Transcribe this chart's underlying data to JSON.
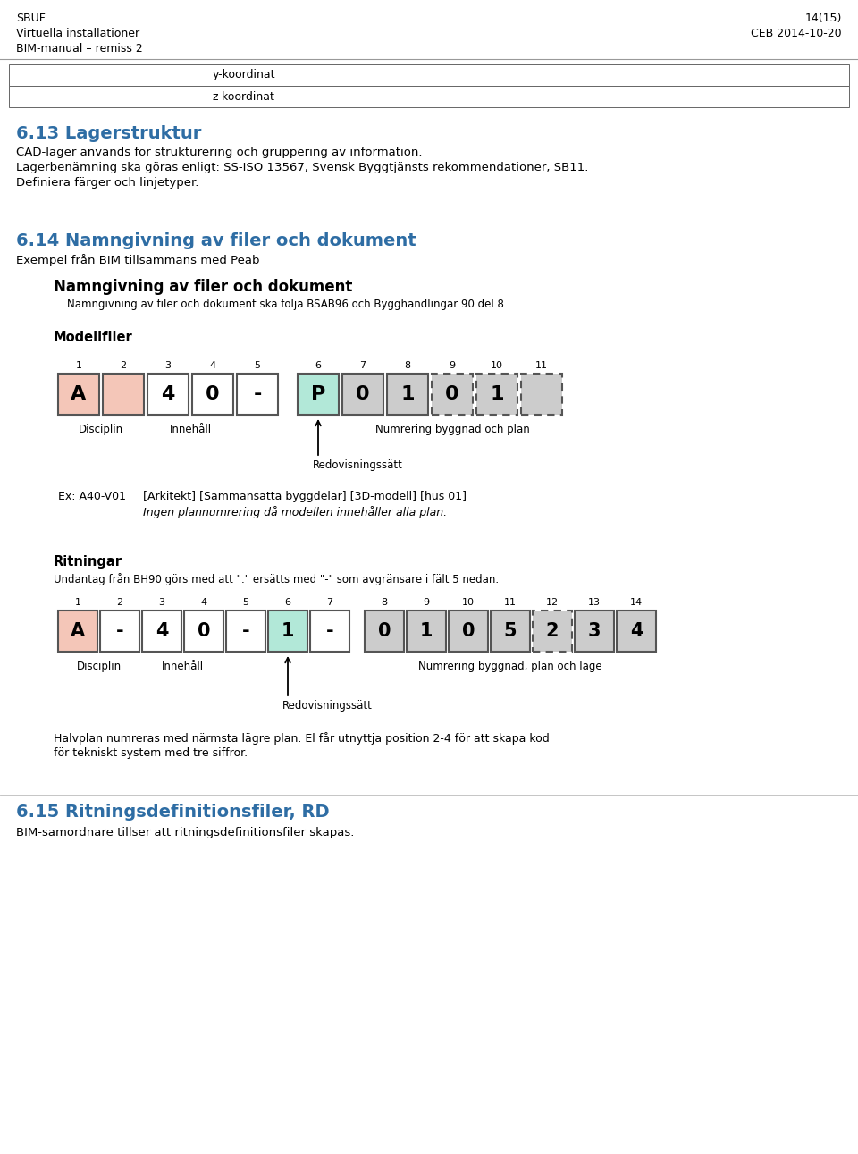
{
  "header_left": [
    "SBUF",
    "Virtuella installationer",
    "BIM-manual – remiss 2"
  ],
  "header_right": [
    "14(15)",
    "CEB 2014-10-20"
  ],
  "table_rows": [
    "y-koordinat",
    "z-koordinat"
  ],
  "section_613_title": "6.13 Lagerstruktur",
  "section_613_text": [
    "CAD-lager används för strukturering och gruppering av information.",
    "Lagerbenämning ska göras enligt: SS-ISO 13567, Svensk Byggtjänsts rekommendationer, SB11.",
    "Definiera färger och linjetyper."
  ],
  "section_614_title": "6.14 Namngivning av filer och dokument",
  "section_614_subtitle": "Exempel från BIM tillsammans med Peab",
  "doc_title": "Namngivning av filer och dokument",
  "doc_subtitle": "Namngivning av filer och dokument ska följa BSAB96 och Bygghandlingar 90 del 8.",
  "modellfiler_title": "Modellfiler",
  "model_numbers": [
    "1",
    "2",
    "3",
    "4",
    "5",
    "6",
    "7",
    "8",
    "9",
    "10",
    "11"
  ],
  "model_labels": [
    "A",
    "",
    "4",
    "0",
    "-",
    "P",
    "0",
    "1",
    "0",
    "1",
    ""
  ],
  "model_colors": [
    "#f4c6b8",
    "#f4c6b8",
    "#ffffff",
    "#ffffff",
    "#ffffff",
    "#b2e8d8",
    "#cccccc",
    "#cccccc",
    "#cccccc",
    "#cccccc",
    "#cccccc"
  ],
  "model_dashed": [
    false,
    false,
    false,
    false,
    false,
    false,
    false,
    false,
    true,
    true,
    true
  ],
  "model_ann_left": "Disciplin",
  "model_ann_mid": "Innehåll",
  "model_ann_right": "Numrering byggnad och plan",
  "model_ann_arrow": "Redovisningssätt",
  "model_ex_label": "Ex: A40-V01",
  "model_ex_text": "[Arkitekt] [Sammansatta byggdelar] [3D-modell] [hus 01]",
  "model_ex_italic": "Ingen plannumrering då modellen innehåller alla plan.",
  "ritningar_title": "Ritningar",
  "ritningar_text": "Undantag från BH90 görs med att \".\" ersätts med \"-\" som avgränsare i fält 5 nedan.",
  "rit_numbers": [
    "1",
    "2",
    "3",
    "4",
    "5",
    "6",
    "7",
    "8",
    "9",
    "10",
    "11",
    "12",
    "13",
    "14"
  ],
  "rit_labels": [
    "A",
    "-",
    "4",
    "0",
    "-",
    "1",
    "-",
    "0",
    "1",
    "0",
    "5",
    "2",
    "3",
    "4"
  ],
  "rit_colors": [
    "#f4c6b8",
    "#ffffff",
    "#ffffff",
    "#ffffff",
    "#ffffff",
    "#b2e8d8",
    "#ffffff",
    "#cccccc",
    "#cccccc",
    "#cccccc",
    "#cccccc",
    "#cccccc",
    "#cccccc",
    "#cccccc"
  ],
  "rit_dashed": [
    false,
    false,
    false,
    false,
    false,
    false,
    false,
    false,
    false,
    false,
    false,
    true,
    false,
    false
  ],
  "rit_ann_left": "Disciplin",
  "rit_ann_mid": "Innehåll",
  "rit_ann_right": "Numrering byggnad, plan och läge",
  "rit_ann_arrow": "Redovisningssätt",
  "rit_footnote_1": "Halvplan numreras med närmsta lägre plan. El får utnyttja position 2-4 för att skapa kod",
  "rit_footnote_2": "för tekniskt system med tre siffror.",
  "section_615_title": "6.15 Ritningsdefinitionsfiler, RD",
  "section_615_text": "BIM-samordnare tillser att ritningsdefinitionsfiler skapas.",
  "heading_color": "#2e6da4",
  "bg_color": "#ffffff"
}
